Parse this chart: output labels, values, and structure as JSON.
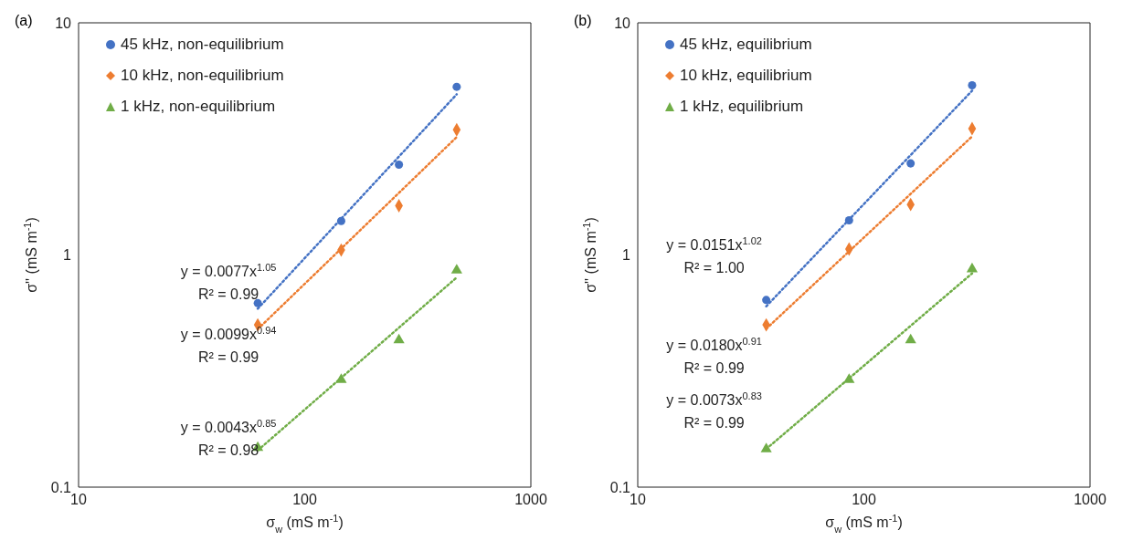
{
  "chart_data": [
    {
      "type": "scatter",
      "title": "(a)",
      "xlabel": "σ$_{w}$ (mS m$^{-1}$)",
      "ylabel": "σ'' (mS m$^{-1}$)",
      "log": "xy",
      "xlim": [
        10,
        1000
      ],
      "xticks": [
        10,
        100,
        1000
      ],
      "ylim": [
        0.1,
        10
      ],
      "yticks": [
        0.1,
        1,
        10
      ],
      "legend": "top left",
      "series": [
        {
          "name": "45 kHz, non-equilibrium",
          "color": "#4472c4",
          "marker": "circle",
          "x": [
            62,
            145,
            261,
            470
          ],
          "values": [
            0.62,
            1.4,
            2.45,
            5.3
          ]
        },
        {
          "name": "10 kHz, non-equilibrium",
          "color": "#ed7d31",
          "marker": "diamond",
          "x": [
            62,
            145,
            261,
            470
          ],
          "values": [
            0.5,
            1.05,
            1.63,
            3.46
          ]
        },
        {
          "name": "1 kHz, non-equilibrium",
          "color": "#70ad47",
          "marker": "triangle",
          "x": [
            62,
            145,
            261,
            470
          ],
          "values": [
            0.148,
            0.29,
            0.43,
            0.86
          ]
        },
        {
          "type": "line",
          "color": "#4472c4",
          "line_style": "dotted",
          "marker": "none",
          "x": [
            62,
            470
          ],
          "values": [
            0.587,
            4.92
          ]
        },
        {
          "type": "line",
          "color": "#ed7d31",
          "line_style": "dotted",
          "marker": "none",
          "x": [
            62,
            470
          ],
          "values": [
            0.479,
            3.22
          ]
        },
        {
          "type": "line",
          "color": "#70ad47",
          "line_style": "dotted",
          "marker": "none",
          "x": [
            62,
            470
          ],
          "values": [
            0.144,
            0.8
          ]
        }
      ],
      "annotations": [
        "y = 0.0077x$^{1.05}$\nR² = 0.99",
        "y = 0.0099x$^{0.94}$\nR² = 0.99",
        "y = 0.0043x$^{0.85}$\nR² = 0.98"
      ]
    },
    {
      "type": "scatter",
      "title": "(b)",
      "xlabel": "σ$_{w}$ (mS m$^{-1}$)",
      "ylabel": "σ'' (mS m$^{-1}$)",
      "log": "xy",
      "xlim": [
        10,
        1000
      ],
      "xticks": [
        10,
        100,
        1000
      ],
      "ylim": [
        0.1,
        10
      ],
      "yticks": [
        0.1,
        1,
        10
      ],
      "legend": "top left",
      "series": [
        {
          "name": "45 kHz, equilibrium",
          "color": "#4472c4",
          "marker": "circle",
          "x": [
            37,
            86,
            161,
            301
          ],
          "values": [
            0.64,
            1.41,
            2.48,
            5.38
          ]
        },
        {
          "name": "10 kHz, equilibrium",
          "color": "#ed7d31",
          "marker": "diamond",
          "x": [
            37,
            86,
            161,
            301
          ],
          "values": [
            0.5,
            1.06,
            1.65,
            3.5
          ]
        },
        {
          "name": "1 kHz, equilibrium",
          "color": "#70ad47",
          "marker": "triangle",
          "x": [
            37,
            86,
            161,
            301
          ],
          "values": [
            0.146,
            0.29,
            0.43,
            0.87
          ]
        },
        {
          "type": "line",
          "color": "#4472c4",
          "line_style": "dotted",
          "marker": "none",
          "x": [
            37,
            301
          ],
          "values": [
            0.601,
            5.1
          ]
        },
        {
          "type": "line",
          "color": "#ed7d31",
          "line_style": "dotted",
          "marker": "none",
          "x": [
            37,
            301
          ],
          "values": [
            0.481,
            3.24
          ]
        },
        {
          "type": "line",
          "color": "#70ad47",
          "line_style": "dotted",
          "marker": "none",
          "x": [
            37,
            301
          ],
          "values": [
            0.146,
            0.833
          ]
        }
      ],
      "annotations": [
        "y = 0.0151x$^{1.02}$\nR² = 1.00",
        "y = 0.0180x$^{0.91}$\nR² = 0.99",
        "y = 0.0073x$^{0.83}$\nR² = 0.99"
      ]
    }
  ]
}
